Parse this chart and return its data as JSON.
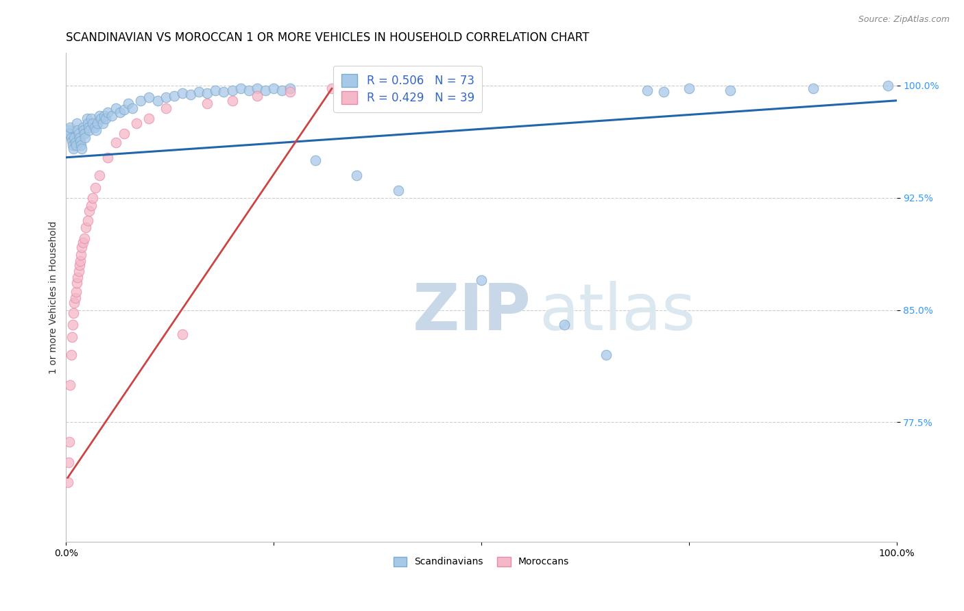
{
  "title": "SCANDINAVIAN VS MOROCCAN 1 OR MORE VEHICLES IN HOUSEHOLD CORRELATION CHART",
  "source": "Source: ZipAtlas.com",
  "ylabel": "1 or more Vehicles in Household",
  "xmin": 0.0,
  "xmax": 1.0,
  "ymin": 0.695,
  "ymax": 1.022,
  "yticks": [
    0.775,
    0.85,
    0.925,
    1.0
  ],
  "yticklabels": [
    "77.5%",
    "85.0%",
    "92.5%",
    "100.0%"
  ],
  "xticks": [
    0.0,
    0.25,
    0.5,
    0.75,
    1.0
  ],
  "xticklabels": [
    "0.0%",
    "",
    "",
    "",
    "100.0%"
  ],
  "blue_color": "#a8c8e8",
  "pink_color": "#f4b8c8",
  "blue_edge_color": "#7aaacc",
  "pink_edge_color": "#e88aaa",
  "blue_line_color": "#2166ac",
  "pink_line_color": "#cc4444",
  "legend_text_blue": "R = 0.506   N = 73",
  "legend_text_pink": "R = 0.429   N = 39",
  "legend_label_blue": "Scandinavians",
  "legend_label_pink": "Moroccans",
  "watermark_zip": "ZIP",
  "watermark_atlas": "atlas",
  "blue_points_x": [
    0.003,
    0.004,
    0.005,
    0.006,
    0.007,
    0.008,
    0.009,
    0.01,
    0.011,
    0.012,
    0.013,
    0.014,
    0.015,
    0.016,
    0.017,
    0.018,
    0.019,
    0.02,
    0.021,
    0.022,
    0.023,
    0.025,
    0.026,
    0.027,
    0.028,
    0.03,
    0.032,
    0.034,
    0.036,
    0.038,
    0.04,
    0.042,
    0.044,
    0.046,
    0.048,
    0.05,
    0.055,
    0.06,
    0.065,
    0.07,
    0.075,
    0.08,
    0.09,
    0.1,
    0.11,
    0.12,
    0.13,
    0.14,
    0.15,
    0.16,
    0.17,
    0.18,
    0.19,
    0.2,
    0.21,
    0.22,
    0.23,
    0.24,
    0.25,
    0.26,
    0.27,
    0.3,
    0.35,
    0.4,
    0.5,
    0.6,
    0.65,
    0.7,
    0.72,
    0.75,
    0.8,
    0.9,
    0.99
  ],
  "blue_points_y": [
    0.97,
    0.968,
    0.972,
    0.965,
    0.963,
    0.96,
    0.958,
    0.965,
    0.962,
    0.96,
    0.975,
    0.97,
    0.968,
    0.965,
    0.963,
    0.96,
    0.958,
    0.972,
    0.97,
    0.968,
    0.965,
    0.978,
    0.975,
    0.972,
    0.97,
    0.978,
    0.975,
    0.972,
    0.97,
    0.975,
    0.98,
    0.978,
    0.975,
    0.98,
    0.978,
    0.982,
    0.98,
    0.985,
    0.982,
    0.984,
    0.988,
    0.985,
    0.99,
    0.992,
    0.99,
    0.992,
    0.993,
    0.995,
    0.994,
    0.996,
    0.995,
    0.997,
    0.996,
    0.997,
    0.998,
    0.997,
    0.998,
    0.997,
    0.998,
    0.997,
    0.998,
    0.95,
    0.94,
    0.93,
    0.87,
    0.84,
    0.82,
    0.997,
    0.996,
    0.998,
    0.997,
    0.998,
    1.0
  ],
  "pink_points_x": [
    0.002,
    0.003,
    0.004,
    0.005,
    0.006,
    0.007,
    0.008,
    0.009,
    0.01,
    0.011,
    0.012,
    0.013,
    0.014,
    0.015,
    0.016,
    0.017,
    0.018,
    0.019,
    0.02,
    0.022,
    0.024,
    0.026,
    0.028,
    0.03,
    0.032,
    0.035,
    0.04,
    0.05,
    0.06,
    0.07,
    0.085,
    0.1,
    0.12,
    0.14,
    0.17,
    0.2,
    0.23,
    0.27,
    0.32
  ],
  "pink_points_y": [
    0.735,
    0.748,
    0.762,
    0.8,
    0.82,
    0.832,
    0.84,
    0.848,
    0.855,
    0.858,
    0.862,
    0.868,
    0.872,
    0.876,
    0.88,
    0.883,
    0.887,
    0.892,
    0.895,
    0.898,
    0.905,
    0.91,
    0.916,
    0.92,
    0.925,
    0.932,
    0.94,
    0.952,
    0.962,
    0.968,
    0.975,
    0.978,
    0.985,
    0.834,
    0.988,
    0.99,
    0.993,
    0.996,
    0.998
  ],
  "blue_line_x": [
    0.0,
    1.0
  ],
  "blue_line_y": [
    0.952,
    0.99
  ],
  "pink_line_x": [
    0.002,
    0.32
  ],
  "pink_line_y": [
    0.738,
    0.998
  ],
  "title_fontsize": 12,
  "axis_label_fontsize": 10,
  "tick_fontsize": 10,
  "source_fontsize": 9,
  "legend_fontsize": 12
}
